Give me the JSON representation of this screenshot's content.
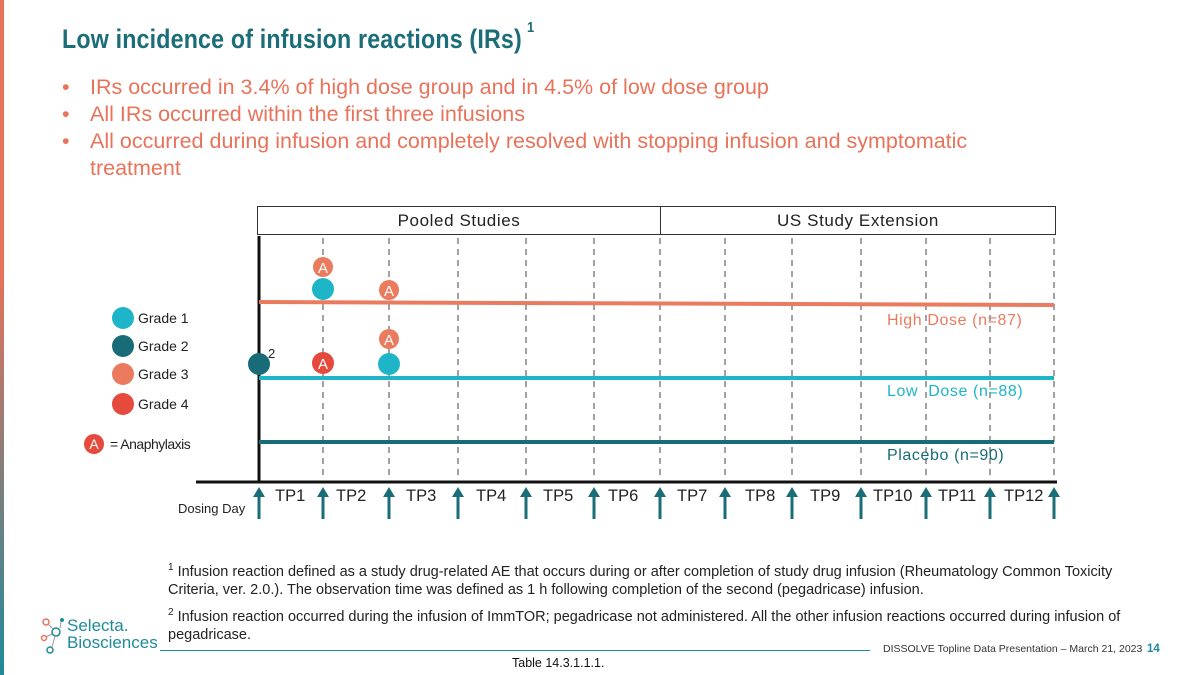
{
  "title": "Low incidence of infusion reactions (IRs)",
  "title_sup": "1",
  "bullets": [
    "IRs occurred in 3.4% of high dose group and in 4.5% of low dose group",
    "All IRs occurred within the first three infusions",
    "All occurred during infusion and completely resolved with stopping infusion and symptomatic treatment"
  ],
  "bullet_char": "•",
  "headers": {
    "pooled": "Pooled Studies",
    "extension": "US Study Extension"
  },
  "timepoints": [
    "TP1",
    "TP2",
    "TP3",
    "TP4",
    "TP5",
    "TP6",
    "TP7",
    "TP8",
    "TP9",
    "TP10",
    "TP11",
    "TP12"
  ],
  "dosing_day_label": "Dosing Day",
  "legend": [
    {
      "label": "Grade 1",
      "color": "#1fb5c9"
    },
    {
      "label": "Grade 2",
      "color": "#176c78"
    },
    {
      "label": "Grade 3",
      "color": "#ea7b5f"
    },
    {
      "label": "Grade 4",
      "color": "#e54a3c"
    }
  ],
  "anaphylaxis": {
    "symbol": "A",
    "label": "= Anaphylaxis"
  },
  "series": {
    "high": {
      "label": "High Dose (n=87)",
      "color": "#ea7b5f"
    },
    "low": {
      "label": "Low  Dose (n=88)",
      "color": "#1fb5c9"
    },
    "placebo": {
      "label": "Placebo (n=90)",
      "color": "#176c78"
    }
  },
  "marker_note": "2",
  "footnotes": [
    {
      "num": "1",
      "text": "Infusion reaction defined as a study drug-related AE that occurs during or after completion of study drug infusion (Rheumatology Common Toxicity Criteria, ver. 2.0.). The observation time was defined as 1 h following completion of the second (pegadricase) infusion."
    },
    {
      "num": "2",
      "text": "Infusion reaction occurred during the infusion of ImmTOR; pegadricase not administered.  All the other infusion reactions occurred during infusion of pegadricase."
    }
  ],
  "footer": "DISSOLVE Topline Data  Presentation – March 21, 2023",
  "page_number": "14",
  "table_ref": "Table 14.3.1.1.1.",
  "logo": {
    "line1": "Selecta.",
    "line2": "Biosciences"
  }
}
